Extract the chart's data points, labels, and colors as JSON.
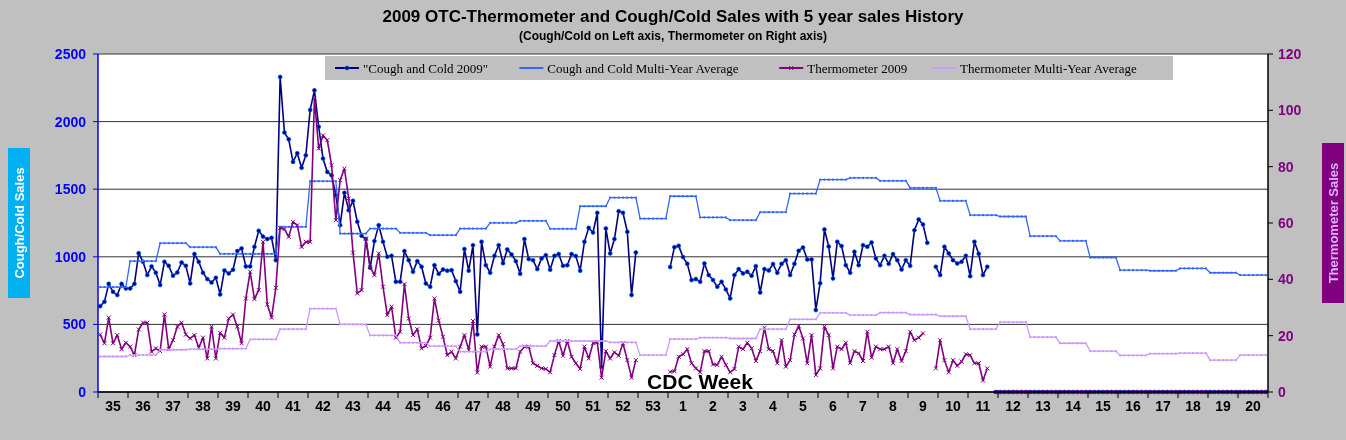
{
  "chart_data": {
    "type": "line",
    "title": "2009 OTC-Thermometer and Cough/Cold Sales with 5 year sales History",
    "subtitle": "(Cough/Cold on Left axis, Thermometer on Right axis)",
    "xlabel": "CDC Week",
    "ylabel": "Cough/Cold Sales",
    "y2label": "Thermometer Sales",
    "categories": [
      null,
      null,
      null,
      "35",
      null,
      null,
      null,
      null,
      null,
      null,
      "36",
      null,
      null,
      null,
      null,
      null,
      null,
      "37",
      null,
      null,
      null,
      null,
      null,
      null,
      "38",
      null,
      null,
      null,
      null,
      null,
      null,
      "39",
      null,
      null,
      null,
      null,
      null,
      null,
      "40",
      null,
      null,
      null,
      null,
      null,
      null,
      "41",
      null,
      null,
      null,
      null,
      null,
      null,
      "42",
      null,
      null,
      null,
      null,
      null,
      null,
      "43",
      null,
      null,
      null,
      null,
      null,
      null,
      "44",
      null,
      null,
      null,
      null,
      null,
      null,
      "45",
      null,
      null,
      null,
      null,
      null,
      null,
      "46",
      null,
      null,
      null,
      null,
      null,
      null,
      "47",
      null,
      null,
      null,
      null,
      null,
      null,
      "48",
      null,
      null,
      null,
      null,
      null,
      null,
      "49",
      null,
      null,
      null,
      null,
      null,
      null,
      "50",
      null,
      null,
      null,
      null,
      null,
      null,
      "51",
      null,
      null,
      null,
      null,
      null,
      null,
      "52",
      null,
      null,
      null,
      null,
      null,
      null,
      "53",
      null,
      null,
      null,
      null,
      null,
      null,
      "1",
      null,
      null,
      null,
      null,
      null,
      null,
      "2",
      null,
      null,
      null,
      null,
      null,
      null,
      "3",
      null,
      null,
      null,
      null,
      null,
      null,
      "4",
      null,
      null,
      null,
      null,
      null,
      null,
      "5",
      null,
      null,
      null,
      null,
      null,
      null,
      "6",
      null,
      null,
      null,
      null,
      null,
      null,
      "7",
      null,
      null,
      null,
      null,
      null,
      null,
      "8",
      null,
      null,
      null,
      null,
      null,
      null,
      "9",
      null,
      null,
      null,
      null,
      null,
      null,
      "10",
      null,
      null,
      null,
      null,
      null,
      null,
      "11",
      null,
      null,
      null,
      null,
      null,
      null,
      "12",
      null,
      null,
      null,
      null,
      null,
      null,
      "13",
      null,
      null,
      null,
      null,
      null,
      null,
      "14",
      null,
      null,
      null,
      null,
      null,
      null,
      "15",
      null,
      null,
      null,
      null,
      null,
      null,
      "16",
      null,
      null,
      null,
      null,
      null,
      null,
      "17",
      null,
      null,
      null,
      null,
      null,
      null,
      "18",
      null,
      null,
      null,
      null,
      null,
      null,
      "19",
      null,
      null,
      null,
      null,
      null,
      null,
      "20",
      null,
      null,
      null
    ],
    "ylim": [
      0,
      2500
    ],
    "yticks": [
      0,
      500,
      1000,
      1500,
      2000,
      2500
    ],
    "y2lim": [
      0,
      120
    ],
    "y2ticks": [
      0,
      20,
      40,
      60,
      80,
      100,
      120
    ],
    "grid": "y",
    "legend": "top",
    "series": [
      {
        "name": "\"Cough and Cold 2009\"",
        "color": "#000080",
        "marker": "circle",
        "values": [
          635,
          667,
          800,
          741,
          717,
          800,
          766,
          766,
          800,
          1027,
          963,
          865,
          929,
          882,
          791,
          963,
          933,
          860,
          884,
          958,
          933,
          803,
          1020,
          963,
          882,
          835,
          810,
          845,
          722,
          899,
          877,
          904,
          1042,
          1062,
          929,
          929,
          1074,
          1192,
          1150,
          1131,
          1140,
          975,
          2330,
          1919,
          1869,
          1702,
          1766,
          1658,
          1751,
          2086,
          2231,
          1961,
          1727,
          1628,
          1603,
          1456,
          1234,
          1473,
          1345,
          1414,
          1259,
          1155,
          1131,
          919,
          1116,
          1234,
          1111,
          1000,
          1007,
          815,
          815,
          1042,
          975,
          889,
          968,
          926,
          803,
          778,
          938,
          874,
          906,
          897,
          901,
          820,
          741,
          1057,
          897,
          1086,
          426,
          1111,
          938,
          882,
          1007,
          1086,
          953,
          1054,
          1017,
          968,
          874,
          1131,
          983,
          975,
          909,
          988,
          1012,
          904,
          1007,
          1020,
          933,
          938,
          1020,
          1005,
          897,
          1111,
          1214,
          1180,
          1325,
          187,
          1209,
          1025,
          1131,
          1337,
          1325,
          1185,
          717,
          1032,
          null,
          null,
          null,
          null,
          null,
          null,
          null,
          924,
          1071,
          1081,
          998,
          948,
          828,
          835,
          815,
          951,
          865,
          828,
          778,
          815,
          759,
          692,
          865,
          909,
          877,
          889,
          860,
          931,
          736,
          909,
          899,
          946,
          882,
          948,
          975,
          865,
          948,
          1044,
          1069,
          980,
          980,
          606,
          805,
          1202,
          1076,
          840,
          1111,
          1079,
          938,
          882,
          1037,
          938,
          1086,
          1074,
          1106,
          988,
          938,
          1007,
          948,
          1020,
          975,
          906,
          975,
          933,
          1197,
          1276,
          1239,
          1103,
          null,
          926,
          865,
          1074,
          1025,
          975,
          951,
          963,
          1007,
          857,
          1111,
          1022,
          865,
          926,
          null,
          0,
          0,
          0,
          0,
          0,
          0,
          0,
          0,
          0,
          0,
          0,
          0,
          0,
          0,
          0,
          0,
          0,
          0,
          0,
          0,
          0,
          0,
          0,
          0,
          0,
          0,
          0,
          0,
          0,
          0,
          0,
          0,
          0,
          0,
          0,
          0,
          0,
          0,
          0,
          0,
          0,
          0,
          0,
          0,
          0,
          0,
          0,
          0,
          0,
          0,
          0,
          0,
          0,
          0,
          0,
          0,
          0,
          0,
          0,
          0,
          0,
          0,
          0,
          0
        ]
      },
      {
        "name": "Cough and Cold Multi-Year Average",
        "color": "#3366ff",
        "marker": "square",
        "values": [
          776,
          776,
          776,
          776,
          776,
          776,
          776,
          968,
          968,
          968,
          968,
          968,
          968,
          968,
          1101,
          1101,
          1101,
          1101,
          1101,
          1101,
          1101,
          1071,
          1071,
          1071,
          1071,
          1071,
          1071,
          1071,
          1022,
          1022,
          1022,
          1022,
          1022,
          1022,
          1022,
          1022,
          1022,
          1022,
          1022,
          1022,
          1022,
          1022,
          1222,
          1222,
          1222,
          1222,
          1222,
          1222,
          1222,
          1559,
          1559,
          1559,
          1559,
          1559,
          1559,
          1559,
          1172,
          1172,
          1172,
          1172,
          1172,
          1172,
          1172,
          1209,
          1209,
          1209,
          1209,
          1209,
          1209,
          1209,
          1177,
          1177,
          1177,
          1177,
          1177,
          1177,
          1177,
          1160,
          1160,
          1160,
          1160,
          1160,
          1160,
          1160,
          1209,
          1209,
          1209,
          1209,
          1209,
          1209,
          1209,
          1251,
          1251,
          1251,
          1251,
          1251,
          1251,
          1251,
          1266,
          1266,
          1266,
          1266,
          1266,
          1266,
          1266,
          1207,
          1207,
          1207,
          1207,
          1207,
          1207,
          1207,
          1374,
          1374,
          1374,
          1374,
          1374,
          1374,
          1374,
          1438,
          1438,
          1438,
          1438,
          1438,
          1438,
          1438,
          1283,
          1283,
          1283,
          1283,
          1283,
          1283,
          1283,
          1448,
          1448,
          1448,
          1448,
          1448,
          1448,
          1448,
          1291,
          1291,
          1291,
          1291,
          1291,
          1291,
          1291,
          1271,
          1271,
          1271,
          1271,
          1271,
          1271,
          1271,
          1330,
          1330,
          1330,
          1330,
          1330,
          1330,
          1330,
          1468,
          1468,
          1468,
          1468,
          1468,
          1468,
          1468,
          1571,
          1571,
          1571,
          1571,
          1571,
          1571,
          1571,
          1584,
          1584,
          1584,
          1584,
          1584,
          1584,
          1584,
          1562,
          1562,
          1562,
          1562,
          1562,
          1562,
          1562,
          1510,
          1510,
          1510,
          1510,
          1510,
          1510,
          1510,
          1414,
          1414,
          1414,
          1414,
          1414,
          1414,
          1414,
          1308,
          1308,
          1308,
          1308,
          1308,
          1308,
          1308,
          1298,
          1298,
          1298,
          1298,
          1298,
          1298,
          1298,
          1153,
          1153,
          1153,
          1153,
          1153,
          1153,
          1153,
          1118,
          1118,
          1118,
          1118,
          1118,
          1118,
          1118,
          995,
          995,
          995,
          995,
          995,
          995,
          995,
          901,
          901,
          901,
          901,
          901,
          901,
          901,
          897,
          897,
          897,
          897,
          897,
          897,
          897,
          914,
          914,
          914,
          914,
          914,
          914,
          914,
          882,
          882,
          882,
          882,
          882,
          882,
          882,
          865,
          865,
          865,
          865,
          865,
          865,
          865
        ]
      },
      {
        "name": "Thermometer 2009",
        "axis": "y2",
        "color": "#800080",
        "marker": "cross",
        "values": [
          20.4,
          17.3,
          26.4,
          17.3,
          20.2,
          15.2,
          17.5,
          16.1,
          13.1,
          22.2,
          24.6,
          24.6,
          14.3,
          15.5,
          14.5,
          27.5,
          15.2,
          18.4,
          23.2,
          24.6,
          20.4,
          19.0,
          20.2,
          15.7,
          19.3,
          11.9,
          23.2,
          11.9,
          21.0,
          19.3,
          26.1,
          27.5,
          23.2,
          17.3,
          33.2,
          42.7,
          33.0,
          36.2,
          53.3,
          31.1,
          26.4,
          37.0,
          58.3,
          57.8,
          55.1,
          60.4,
          59.2,
          51.5,
          53.3,
          53.3,
          104.1,
          86.4,
          91.1,
          89.4,
          80.5,
          61.0,
          75.2,
          79.3,
          68.7,
          49.5,
          35.0,
          36.2,
          54.5,
          44.4,
          41.5,
          49.2,
          37.4,
          27.3,
          30.3,
          19.3,
          21.4,
          38.3,
          26.1,
          20.2,
          22.3,
          15.5,
          16.4,
          19.3,
          33.2,
          25.4,
          19.6,
          13.1,
          14.3,
          11.9,
          16.1,
          20.2,
          14.9,
          25.2,
          6.9,
          16.1,
          16.1,
          9.0,
          16.1,
          20.2,
          17.0,
          8.4,
          8.4,
          8.4,
          14.3,
          16.1,
          16.1,
          10.2,
          9.3,
          8.4,
          8.2,
          7.0,
          13.1,
          18.1,
          12.9,
          18.1,
          12.5,
          10.2,
          8.2,
          16.1,
          11.9,
          17.3,
          17.6,
          5.1,
          14.5,
          11.9,
          14.1,
          12.9,
          17.3,
          11.3,
          5.1,
          11.3,
          null,
          null,
          null,
          null,
          null,
          null,
          null,
          7.2,
          7.4,
          12.5,
          13.4,
          15.2,
          10.2,
          8.4,
          7.0,
          14.5,
          14.5,
          9.8,
          9.6,
          12.5,
          9.6,
          7.0,
          8.2,
          16.1,
          15.2,
          17.5,
          15.5,
          11.0,
          14.5,
          22.8,
          15.2,
          14.5,
          10.2,
          18.4,
          9.0,
          11.3,
          20.4,
          23.4,
          19.0,
          10.2,
          20.2,
          6.0,
          8.4,
          23.2,
          20.2,
          8.4,
          16.1,
          15.2,
          17.5,
          10.2,
          14.5,
          13.7,
          11.0,
          21.4,
          12.2,
          16.1,
          15.2,
          15.2,
          16.1,
          10.2,
          15.2,
          11.0,
          14.5,
          21.4,
          18.4,
          19.3,
          20.8,
          null,
          null,
          8.4,
          18.4,
          11.3,
          7.0,
          11.3,
          9.3,
          10.8,
          13.4,
          13.1,
          10.2,
          10.2,
          4.1,
          8.4,
          null,
          0,
          0,
          0,
          0,
          0,
          0,
          0,
          0,
          0,
          0,
          0,
          0,
          0,
          0,
          0,
          0,
          0,
          0,
          0,
          0,
          0,
          0,
          0,
          0,
          0,
          0,
          0,
          0,
          0,
          0,
          0,
          0,
          0,
          0,
          0,
          0,
          0,
          0,
          0,
          0,
          0,
          0,
          0,
          0,
          0,
          0,
          0,
          0,
          0,
          0,
          0,
          0,
          0,
          0,
          0,
          0,
          0,
          0,
          0,
          0,
          0,
          0,
          0,
          0
        ]
      },
      {
        "name": "Thermometer Multi-Year Average",
        "axis": "y2",
        "color": "#cc99ff",
        "marker": "square",
        "values": [
          12.6,
          12.6,
          12.6,
          12.6,
          12.6,
          12.6,
          12.6,
          13.1,
          13.1,
          13.1,
          13.1,
          13.1,
          13.1,
          13.1,
          15.0,
          15.0,
          15.0,
          15.0,
          15.0,
          15.0,
          15.0,
          15.2,
          15.2,
          15.2,
          15.2,
          15.2,
          15.2,
          15.2,
          15.4,
          15.4,
          15.4,
          15.4,
          15.4,
          15.4,
          15.4,
          18.7,
          18.7,
          18.7,
          18.7,
          18.7,
          18.7,
          18.7,
          22.3,
          22.3,
          22.3,
          22.3,
          22.3,
          22.3,
          22.3,
          29.6,
          29.6,
          29.6,
          29.6,
          29.6,
          29.6,
          29.6,
          24.0,
          24.0,
          24.0,
          24.0,
          24.0,
          24.0,
          24.0,
          20.1,
          20.1,
          20.1,
          20.1,
          20.1,
          20.1,
          20.1,
          17.5,
          17.5,
          17.5,
          17.5,
          17.5,
          17.5,
          17.5,
          16.3,
          16.3,
          16.3,
          16.3,
          16.3,
          16.3,
          16.3,
          14.3,
          14.3,
          14.3,
          14.3,
          14.3,
          14.3,
          14.3,
          15.2,
          15.2,
          15.2,
          15.2,
          15.2,
          15.2,
          15.2,
          16.3,
          16.3,
          16.3,
          16.3,
          16.3,
          16.3,
          16.3,
          18.1,
          18.1,
          18.1,
          18.1,
          18.1,
          18.1,
          18.1,
          18.1,
          18.1,
          18.1,
          18.1,
          18.1,
          18.1,
          18.1,
          17.6,
          17.6,
          17.6,
          17.6,
          17.6,
          17.6,
          17.6,
          13.1,
          13.1,
          13.1,
          13.1,
          13.1,
          13.1,
          13.1,
          18.8,
          18.8,
          18.8,
          18.8,
          18.8,
          18.8,
          18.8,
          19.3,
          19.3,
          19.3,
          19.3,
          19.3,
          19.3,
          19.3,
          19.0,
          19.0,
          19.0,
          19.0,
          19.0,
          19.0,
          19.0,
          22.3,
          22.3,
          22.3,
          22.3,
          22.3,
          22.3,
          22.3,
          25.8,
          25.8,
          25.8,
          25.8,
          25.8,
          25.8,
          25.8,
          28.1,
          28.1,
          28.1,
          28.1,
          28.1,
          28.1,
          28.1,
          27.3,
          27.3,
          27.3,
          27.3,
          27.3,
          27.3,
          27.3,
          28.2,
          28.2,
          28.2,
          28.2,
          28.2,
          28.2,
          28.2,
          27.5,
          27.5,
          27.5,
          27.5,
          27.5,
          27.5,
          27.5,
          26.9,
          26.9,
          26.9,
          26.9,
          26.9,
          26.9,
          26.9,
          22.3,
          22.3,
          22.3,
          22.3,
          22.3,
          22.3,
          22.3,
          24.8,
          24.8,
          24.8,
          24.8,
          24.8,
          24.8,
          24.8,
          19.5,
          19.5,
          19.5,
          19.5,
          19.5,
          19.5,
          19.5,
          17.3,
          17.3,
          17.3,
          17.3,
          17.3,
          17.3,
          17.3,
          14.5,
          14.5,
          14.5,
          14.5,
          14.5,
          14.5,
          14.5,
          13.0,
          13.0,
          13.0,
          13.0,
          13.0,
          13.0,
          13.0,
          13.6,
          13.6,
          13.6,
          13.6,
          13.6,
          13.6,
          13.6,
          13.8,
          13.8,
          13.8,
          13.8,
          13.8,
          13.8,
          13.8,
          11.3,
          11.3,
          11.3,
          11.3,
          11.3,
          11.3,
          11.3,
          13.1,
          13.1,
          13.1,
          13.1,
          13.1,
          13.1,
          13.1
        ]
      }
    ]
  }
}
